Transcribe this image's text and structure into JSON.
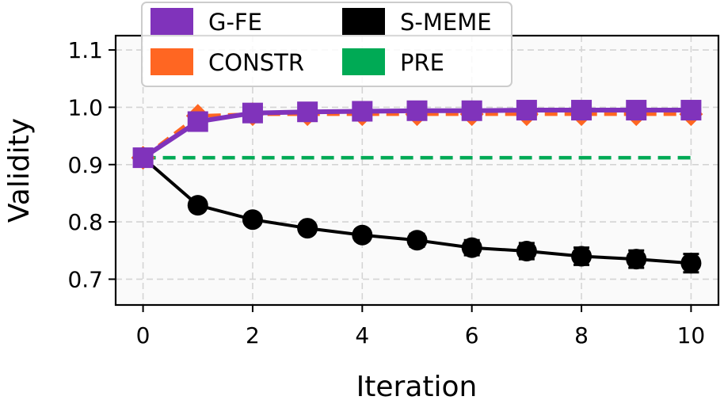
{
  "chart_data": {
    "type": "line",
    "title": "",
    "xlabel": "Iteration",
    "ylabel": "Validity",
    "xlim": [
      -0.5,
      10.5
    ],
    "ylim": [
      0.655,
      1.125
    ],
    "xticks": [
      0,
      2,
      4,
      6,
      8,
      10
    ],
    "yticks": [
      0.7,
      0.8,
      0.9,
      1.0,
      1.1
    ],
    "xtick_labels": [
      "0",
      "2",
      "4",
      "6",
      "8",
      "10"
    ],
    "ytick_labels": [
      "0.7",
      "0.8",
      "0.9",
      "1.0",
      "1.1"
    ],
    "grid": true,
    "legend": {
      "position": "top-left",
      "columns": 2,
      "entries": [
        "G-FE",
        "S-MEME",
        "CONSTR",
        "PRE"
      ]
    },
    "x": [
      0,
      1,
      2,
      3,
      4,
      5,
      6,
      7,
      8,
      9,
      10
    ],
    "series": [
      {
        "name": "PRE",
        "color": "#00aa55",
        "style": "dashed",
        "values": [
          0.912,
          0.912,
          0.912,
          0.912,
          0.912,
          0.912,
          0.912,
          0.912,
          0.912,
          0.912,
          0.912
        ]
      },
      {
        "name": "CONSTR",
        "color": "#ff6622",
        "style": "dashed-diamond",
        "values": [
          0.912,
          0.985,
          0.988,
          0.988,
          0.988,
          0.988,
          0.988,
          0.988,
          0.988,
          0.988,
          0.988
        ]
      },
      {
        "name": "S-MEME",
        "color": "#000000",
        "style": "solid-circle",
        "values": [
          0.912,
          0.829,
          0.804,
          0.789,
          0.777,
          0.768,
          0.755,
          0.749,
          0.74,
          0.735,
          0.728
        ],
        "errors": [
          0.0,
          0.006,
          0.008,
          0.009,
          0.01,
          0.011,
          0.013,
          0.014,
          0.015,
          0.015,
          0.016
        ]
      },
      {
        "name": "G-FE",
        "color": "#8033bb",
        "style": "solid-square",
        "values": [
          0.912,
          0.975,
          0.99,
          0.992,
          0.993,
          0.994,
          0.994,
          0.995,
          0.995,
          0.995,
          0.995
        ]
      }
    ]
  }
}
